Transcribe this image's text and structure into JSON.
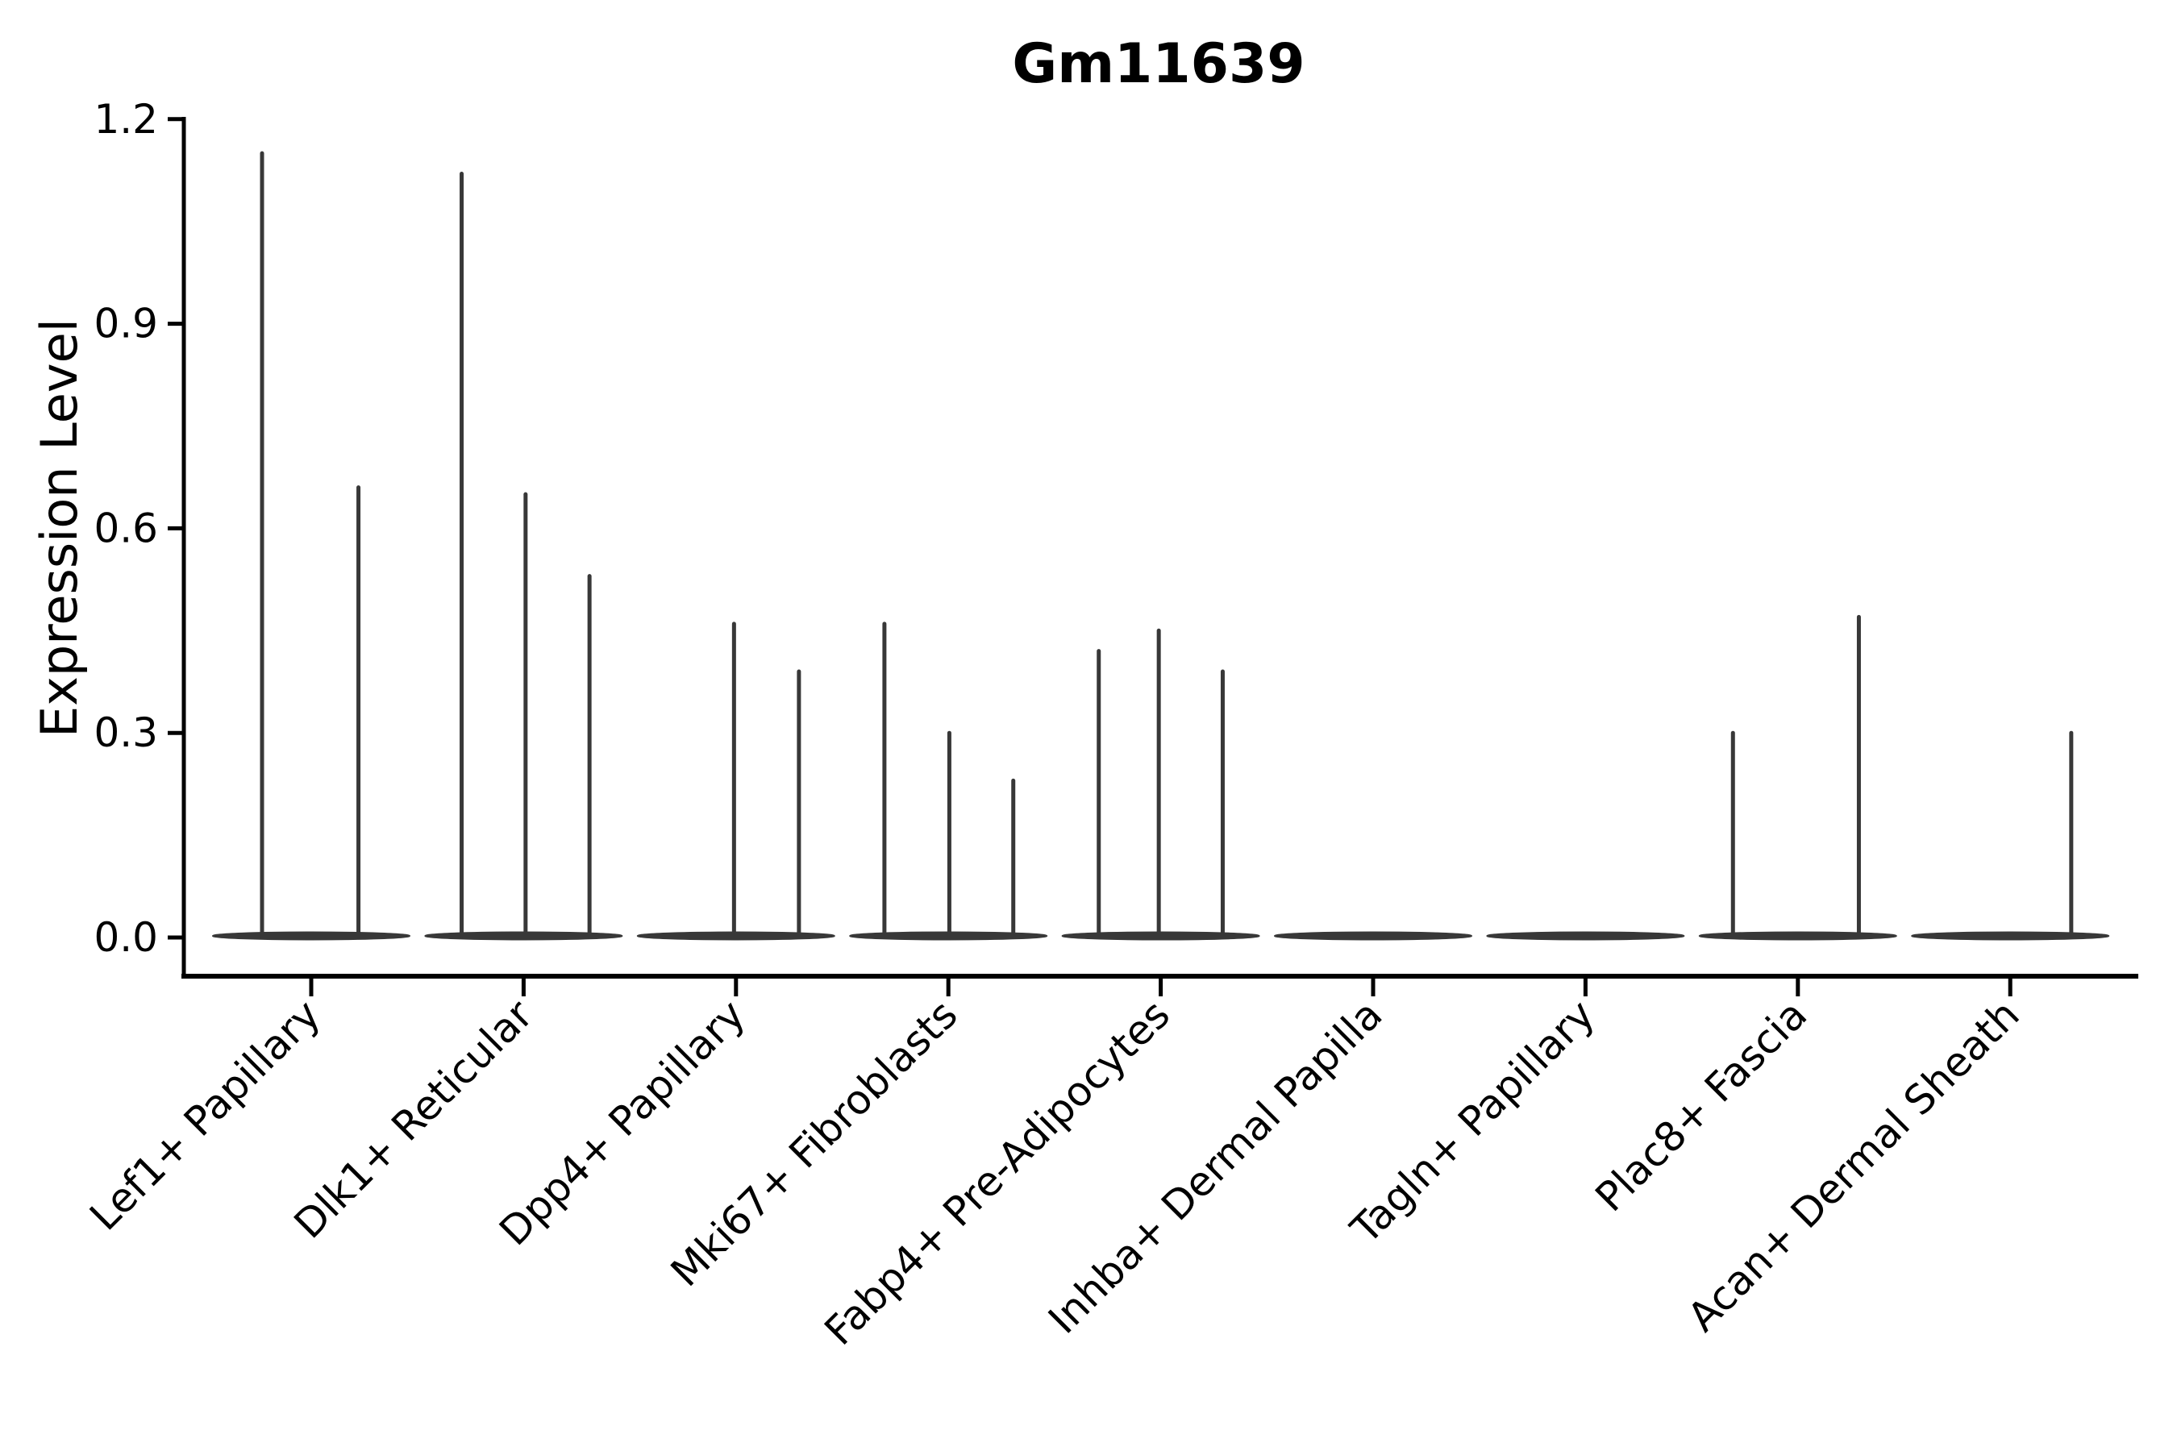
{
  "chart_data": {
    "type": "violin",
    "title": "Gm11639",
    "ylabel": "Expression Level",
    "xlabel": "",
    "yticks": [
      0.0,
      0.3,
      0.6,
      0.9,
      1.2
    ],
    "ylim": [
      0.0,
      1.2
    ],
    "grid": false,
    "legend": "none",
    "baseline_value": 0.0,
    "categories": [
      "Lef1+ Papillary",
      "Dlk1+ Reticular",
      "Dpp4+ Papillary",
      "Mki67+ Fibroblasts",
      "Fabp4+ Pre-Adipocytes",
      "Inhba+ Dermal Papilla",
      "Tagln+ Papillary",
      "Plac8+ Fascia",
      "Acan+ Dermal Sheath"
    ],
    "violins": [
      {
        "label": "Lef1+ Papillary",
        "spikes": [
          {
            "pos": -0.5,
            "value": 1.15
          },
          {
            "pos": 0.48,
            "value": 0.66
          }
        ]
      },
      {
        "label": "Dlk1+ Reticular",
        "spikes": [
          {
            "pos": -0.63,
            "value": 1.12
          },
          {
            "pos": 0.02,
            "value": 0.65
          },
          {
            "pos": 0.67,
            "value": 0.53
          }
        ]
      },
      {
        "label": "Dpp4+ Papillary",
        "spikes": [
          {
            "pos": -0.02,
            "value": 0.46
          },
          {
            "pos": 0.64,
            "value": 0.39
          }
        ]
      },
      {
        "label": "Mki67+ Fibroblasts",
        "spikes": [
          {
            "pos": -0.65,
            "value": 0.46
          },
          {
            "pos": 0.01,
            "value": 0.3
          },
          {
            "pos": 0.66,
            "value": 0.23
          }
        ]
      },
      {
        "label": "Fabp4+ Pre-Adipocytes",
        "spikes": [
          {
            "pos": -0.63,
            "value": 0.42
          },
          {
            "pos": -0.02,
            "value": 0.45
          },
          {
            "pos": 0.63,
            "value": 0.39
          }
        ]
      },
      {
        "label": "Inhba+ Dermal Papilla",
        "spikes": []
      },
      {
        "label": "Tagln+ Papillary",
        "spikes": []
      },
      {
        "label": "Plac8+ Fascia",
        "spikes": [
          {
            "pos": -0.66,
            "value": 0.3
          },
          {
            "pos": 0.62,
            "value": 0.47
          }
        ]
      },
      {
        "label": "Acan+ Dermal Sheath",
        "spikes": [
          {
            "pos": 0.62,
            "value": 0.3
          }
        ]
      }
    ],
    "colors": {
      "violin": "#383838",
      "axis": "#000000",
      "text": "#000000",
      "background": "#ffffff"
    }
  }
}
